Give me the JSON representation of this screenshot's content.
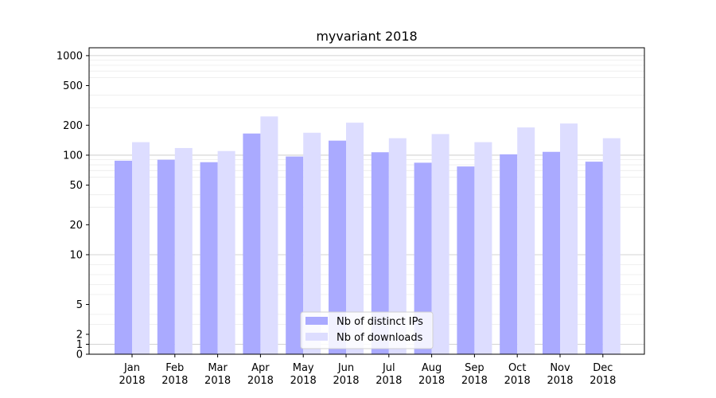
{
  "chart_data": {
    "type": "bar",
    "title": "myvariant 2018",
    "xlabel": "",
    "ylabel": "",
    "y_scale": "symlog",
    "ylim": [
      0,
      1200
    ],
    "y_ticks": [
      {
        "value": 0,
        "label": "0"
      },
      {
        "value": 1,
        "label": "1"
      },
      {
        "value": 2,
        "label": "2"
      },
      {
        "value": 5,
        "label": "5"
      },
      {
        "value": 10,
        "label": "10"
      },
      {
        "value": 20,
        "label": "20"
      },
      {
        "value": 50,
        "label": "50"
      },
      {
        "value": 100,
        "label": "100"
      },
      {
        "value": 200,
        "label": "200"
      },
      {
        "value": 500,
        "label": "500"
      },
      {
        "value": 1000,
        "label": "1000"
      }
    ],
    "categories": [
      {
        "month": "Jan",
        "year": "2018"
      },
      {
        "month": "Feb",
        "year": "2018"
      },
      {
        "month": "Mar",
        "year": "2018"
      },
      {
        "month": "Apr",
        "year": "2018"
      },
      {
        "month": "May",
        "year": "2018"
      },
      {
        "month": "Jun",
        "year": "2018"
      },
      {
        "month": "Jul",
        "year": "2018"
      },
      {
        "month": "Aug",
        "year": "2018"
      },
      {
        "month": "Sep",
        "year": "2018"
      },
      {
        "month": "Oct",
        "year": "2018"
      },
      {
        "month": "Nov",
        "year": "2018"
      },
      {
        "month": "Dec",
        "year": "2018"
      }
    ],
    "series": [
      {
        "name": "Nb of distinct IPs",
        "color": "#aaaaff",
        "values": [
          88,
          90,
          85,
          165,
          97,
          140,
          107,
          84,
          77,
          102,
          108,
          86
        ]
      },
      {
        "name": "Nb of downloads",
        "color": "#ddddff",
        "values": [
          135,
          118,
          110,
          245,
          168,
          212,
          148,
          163,
          135,
          190,
          208,
          148
        ]
      }
    ],
    "grid": true,
    "legend": "bottom-center"
  }
}
